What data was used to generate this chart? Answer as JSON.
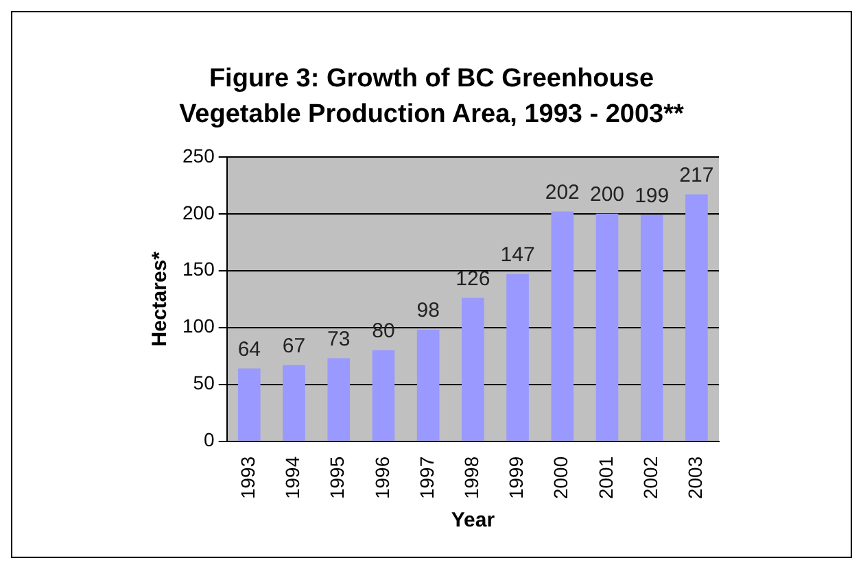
{
  "chart_data": {
    "type": "bar",
    "title": "Figure 3: Growth of BC Greenhouse Vegetable Production Area, 1993 - 2003**",
    "xlabel": "Year",
    "ylabel": "Hectares*",
    "categories": [
      "1993",
      "1994",
      "1995",
      "1996",
      "1997",
      "1998",
      "1999",
      "2000",
      "2001",
      "2002",
      "2003"
    ],
    "values": [
      64,
      67,
      73,
      80,
      98,
      126,
      147,
      202,
      200,
      199,
      217
    ],
    "color": "#9999ff",
    "ylim": [
      0,
      250
    ],
    "yticks": [
      0,
      50,
      100,
      150,
      200,
      250
    ],
    "grid": "y",
    "data_labels": true
  }
}
